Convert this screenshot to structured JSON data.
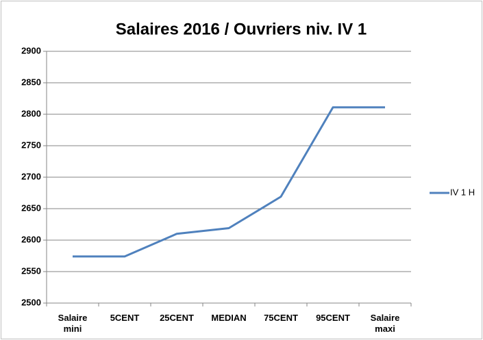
{
  "chart_data": {
    "type": "line",
    "title": "Salaires 2016 / Ouvriers niv. IV 1",
    "categories": [
      "Salaire mini",
      "5CENT",
      "25CENT",
      "MEDIAN",
      "75CENT",
      "95CENT",
      "Salaire maxi"
    ],
    "series": [
      {
        "name": "IV 1 H",
        "color": "#4f81bd",
        "values": [
          2574,
          2574,
          2610,
          2619,
          2669,
          2811,
          2811
        ]
      }
    ],
    "ylim": [
      2500,
      2900
    ],
    "yticks": [
      2500,
      2550,
      2600,
      2650,
      2700,
      2750,
      2800,
      2850,
      2900
    ],
    "grid": true,
    "legend": "right"
  }
}
